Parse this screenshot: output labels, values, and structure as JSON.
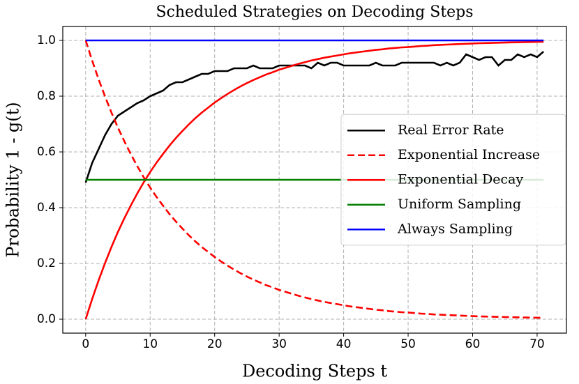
{
  "chart_data": {
    "type": "line",
    "title": "Scheduled Strategies on Decoding Steps",
    "xlabel": "Decoding Steps t",
    "ylabel": "Probability 1 - g(t)",
    "x": [
      0,
      1,
      2,
      3,
      4,
      5,
      6,
      7,
      8,
      9,
      10,
      11,
      12,
      13,
      14,
      15,
      16,
      17,
      18,
      19,
      20,
      21,
      22,
      23,
      24,
      25,
      26,
      27,
      28,
      29,
      30,
      31,
      32,
      33,
      34,
      35,
      36,
      37,
      38,
      39,
      40,
      41,
      42,
      43,
      44,
      45,
      46,
      47,
      48,
      49,
      50,
      51,
      52,
      53,
      54,
      55,
      56,
      57,
      58,
      59,
      60,
      61,
      62,
      63,
      64,
      65,
      66,
      67,
      68,
      69,
      70,
      71
    ],
    "series": [
      {
        "name": "Real Error Rate",
        "color": "#000000",
        "linestyle": "solid",
        "values": [
          0.49,
          0.56,
          0.61,
          0.66,
          0.7,
          0.73,
          0.745,
          0.76,
          0.775,
          0.785,
          0.8,
          0.81,
          0.82,
          0.84,
          0.85,
          0.85,
          0.86,
          0.87,
          0.88,
          0.88,
          0.89,
          0.89,
          0.89,
          0.9,
          0.9,
          0.9,
          0.91,
          0.9,
          0.9,
          0.9,
          0.91,
          0.91,
          0.91,
          0.91,
          0.91,
          0.9,
          0.92,
          0.91,
          0.92,
          0.92,
          0.91,
          0.91,
          0.91,
          0.91,
          0.91,
          0.92,
          0.91,
          0.91,
          0.91,
          0.92,
          0.92,
          0.92,
          0.92,
          0.92,
          0.92,
          0.91,
          0.92,
          0.91,
          0.92,
          0.95,
          0.94,
          0.93,
          0.94,
          0.94,
          0.91,
          0.93,
          0.93,
          0.95,
          0.94,
          0.95,
          0.94,
          0.96
        ]
      },
      {
        "name": "Exponential Increase",
        "color": "#ff0000",
        "linestyle": "dashed",
        "values": [
          1.0,
          0.928,
          0.861,
          0.799,
          0.741,
          0.687,
          0.638,
          0.592,
          0.549,
          0.509,
          0.472,
          0.438,
          0.407,
          0.377,
          0.35,
          0.325,
          0.301,
          0.279,
          0.259,
          0.241,
          0.223,
          0.207,
          0.192,
          0.178,
          0.165,
          0.153,
          0.142,
          0.132,
          0.122,
          0.114,
          0.105,
          0.098,
          0.091,
          0.084,
          0.078,
          0.072,
          0.067,
          0.062,
          0.058,
          0.054,
          0.05,
          0.046,
          0.043,
          0.04,
          0.037,
          0.034,
          0.032,
          0.029,
          0.027,
          0.025,
          0.024,
          0.022,
          0.02,
          0.019,
          0.017,
          0.016,
          0.015,
          0.014,
          0.013,
          0.012,
          0.011,
          0.01,
          0.0096,
          0.0089,
          0.0082,
          0.0076,
          0.0071,
          0.0066,
          0.0061,
          0.0057,
          0.0052,
          0.0049
        ]
      },
      {
        "name": "Exponential Decay",
        "color": "#ff0000",
        "linestyle": "solid",
        "values": [
          0,
          0.072,
          0.139,
          0.201,
          0.259,
          0.313,
          0.362,
          0.408,
          0.451,
          0.491,
          0.528,
          0.562,
          0.593,
          0.623,
          0.65,
          0.675,
          0.699,
          0.721,
          0.741,
          0.759,
          0.777,
          0.793,
          0.808,
          0.822,
          0.835,
          0.847,
          0.858,
          0.868,
          0.878,
          0.886,
          0.895,
          0.902,
          0.909,
          0.916,
          0.922,
          0.928,
          0.933,
          0.938,
          0.942,
          0.946,
          0.95,
          0.954,
          0.957,
          0.96,
          0.963,
          0.966,
          0.968,
          0.971,
          0.973,
          0.975,
          0.976,
          0.978,
          0.98,
          0.981,
          0.983,
          0.984,
          0.985,
          0.986,
          0.987,
          0.988,
          0.989,
          0.99,
          0.9904,
          0.9911,
          0.9918,
          0.9924,
          0.9929,
          0.9934,
          0.9939,
          0.9943,
          0.9948,
          0.9951
        ]
      },
      {
        "name": "Uniform Sampling",
        "color": "#008000",
        "linestyle": "solid",
        "x": [
          0,
          71
        ],
        "values": [
          0.5,
          0.5
        ]
      },
      {
        "name": "Always Sampling",
        "color": "#0000ff",
        "linestyle": "solid",
        "x": [
          0,
          71
        ],
        "values": [
          1.0,
          1.0
        ]
      }
    ],
    "xlim": [
      -3.55,
      74.55
    ],
    "xticks": [
      0,
      10,
      20,
      30,
      40,
      50,
      60,
      70
    ],
    "ylim": [
      -0.05,
      1.05
    ],
    "yticks": [
      {
        "value": 0,
        "label": "0.0"
      },
      0.2,
      0.4,
      0.6,
      0.8,
      {
        "value": 1,
        "label": "1.0"
      }
    ],
    "grid": true,
    "legend": "center right"
  }
}
